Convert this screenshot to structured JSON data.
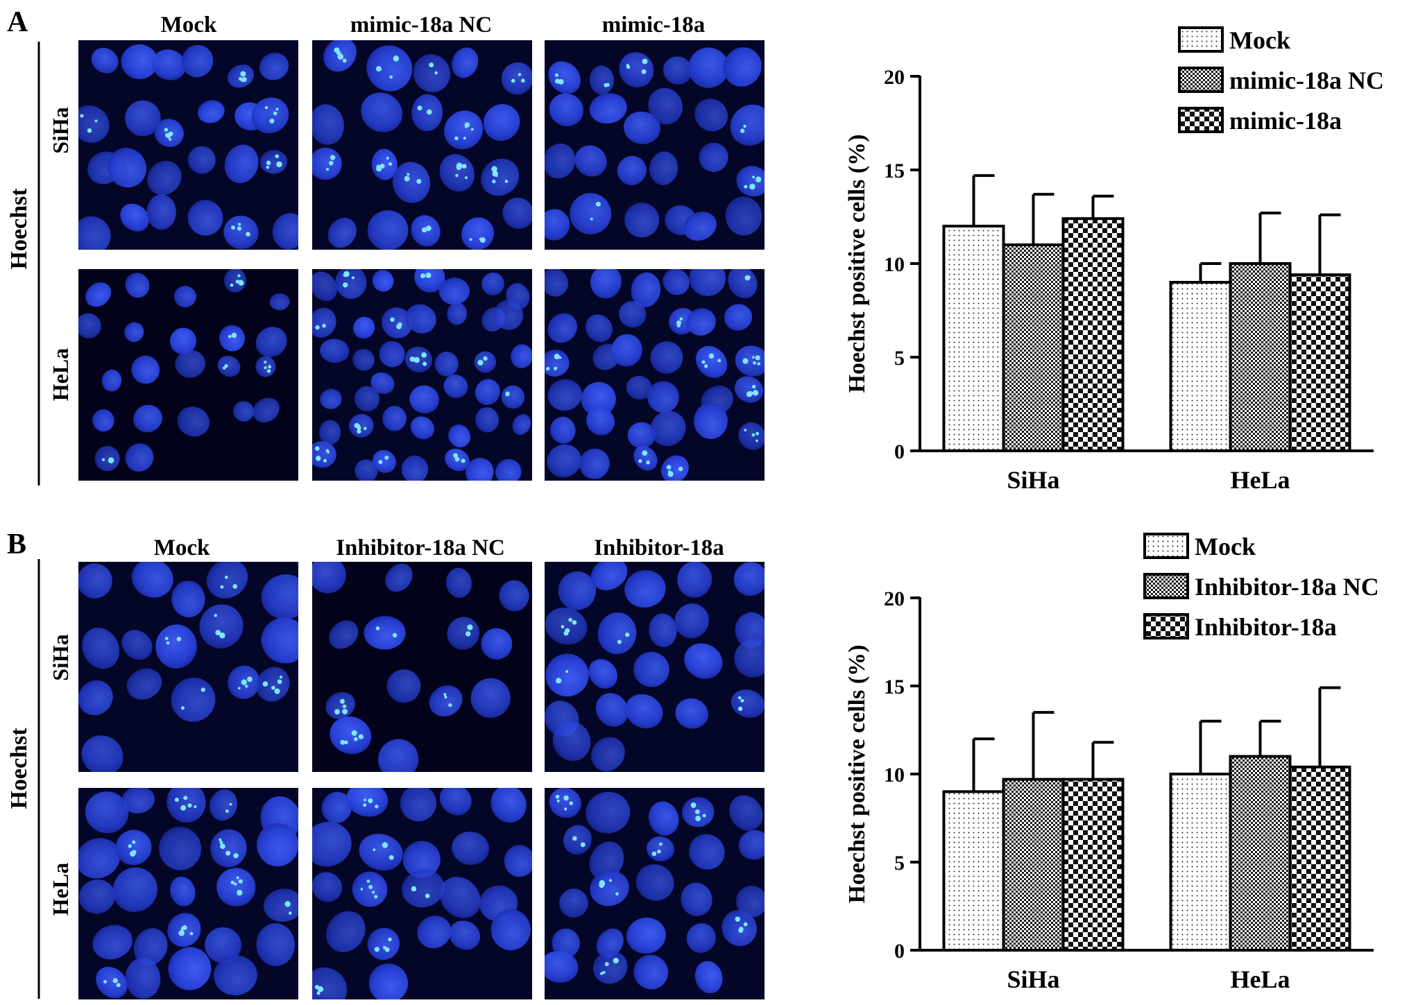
{
  "panels": [
    {
      "letter": "A",
      "stain_label": "Hoechst",
      "rows": [
        "SiHa",
        "HeLa"
      ],
      "columns": [
        "Mock",
        "mimic-18a NC",
        "mimic-18a"
      ]
    },
    {
      "letter": "B",
      "stain_label": "Hoechst",
      "rows": [
        "SiHa",
        "HeLa"
      ],
      "columns": [
        "Mock",
        "Inhibitor-18a NC",
        "Inhibitor-18a"
      ]
    }
  ],
  "chart_data": [
    {
      "type": "bar",
      "ylabel": "Hoechst positive cells (%)",
      "xlabel": "",
      "categories": [
        "SiHa",
        "HeLa"
      ],
      "ylim": [
        0,
        20
      ],
      "yticks": [
        0,
        5,
        10,
        15,
        20
      ],
      "legend_position": "top-right",
      "series": [
        {
          "name": "Mock",
          "pattern": "dots",
          "values": [
            12.0,
            9.0
          ],
          "errors": [
            2.7,
            1.0
          ]
        },
        {
          "name": "mimic-18a NC",
          "pattern": "fine-checker",
          "values": [
            11.0,
            10.0
          ],
          "errors": [
            2.7,
            2.7
          ]
        },
        {
          "name": "mimic-18a",
          "pattern": "coarse-checker",
          "values": [
            12.4,
            9.4
          ],
          "errors": [
            1.2,
            3.2
          ]
        }
      ]
    },
    {
      "type": "bar",
      "ylabel": "Hoechst positive cells (%)",
      "xlabel": "",
      "categories": [
        "SiHa",
        "HeLa"
      ],
      "ylim": [
        0,
        20
      ],
      "yticks": [
        0,
        5,
        10,
        15,
        20
      ],
      "legend_position": "top-right",
      "series": [
        {
          "name": "Mock",
          "pattern": "dots",
          "values": [
            9.0,
            10.0
          ],
          "errors": [
            3.0,
            3.0
          ]
        },
        {
          "name": "Inhibitor-18a NC",
          "pattern": "fine-checker",
          "values": [
            9.7,
            11.0
          ],
          "errors": [
            3.8,
            2.0
          ]
        },
        {
          "name": "Inhibitor-18a",
          "pattern": "coarse-checker",
          "values": [
            9.7,
            10.4
          ],
          "errors": [
            2.1,
            4.5
          ]
        }
      ]
    }
  ]
}
